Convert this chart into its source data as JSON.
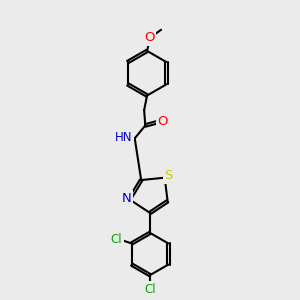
{
  "bg_color": "#ebebeb",
  "bond_color": "#000000",
  "bond_width": 1.5,
  "atom_colors": {
    "O": "#ff0000",
    "N": "#0000cc",
    "S": "#cccc00",
    "Cl": "#00aa00",
    "C": "#000000",
    "H": "#000000"
  },
  "font_size": 8.5,
  "fig_size": [
    3.0,
    3.0
  ],
  "dpi": 100,
  "xlim": [
    0.3,
    2.7
  ],
  "ylim": [
    0.1,
    5.1
  ]
}
